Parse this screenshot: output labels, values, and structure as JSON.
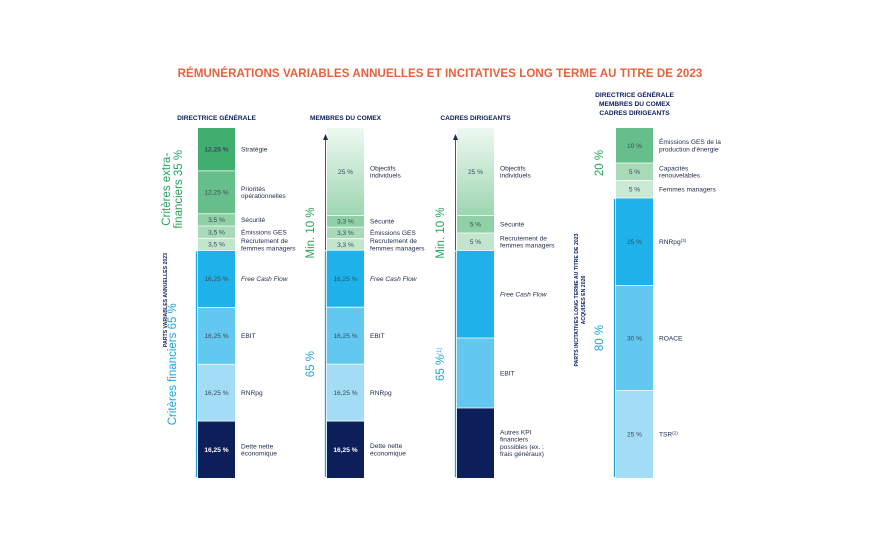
{
  "title": "RÉMUNÉRATIONS VARIABLES ANNUELLES ET INCITATIVES LONG TERME AU TITRE DE 2023",
  "colors": {
    "green_dark": "#3fae6e",
    "green_mid": "#66bf8a",
    "green_light": "#8fd0a6",
    "green_pale": "#b7e1c4",
    "green_faint": "#d9efe0",
    "blue_mid": "#1fb2ea",
    "blue_light": "#62c8ef",
    "blue_pale": "#a3dcf5",
    "navy": "#0c1f5b",
    "title_orange": "#e8603c"
  },
  "left_axis_label": "PARTS VARIABLES ANNUELLES 2023",
  "right_axis_label_1": "PARTS INCITATIVES LONG TERME AU TITRE DE 2023",
  "right_axis_label_2": "ACQUISES EN 2026",
  "chart_data": [
    {
      "type": "stacked-bar",
      "header": [
        "DIRECTRICE GÉNÉRALE"
      ],
      "segments": [
        {
          "value": 12.25,
          "label": "12,25 %",
          "name": "Stratégie",
          "color": "#3fae6e",
          "bold": true
        },
        {
          "value": 12.25,
          "label": "12,25 %",
          "name": "Priorités opérationnelles",
          "color": "#66bf8a"
        },
        {
          "value": 3.5,
          "label": "3,5 %",
          "name": "Sécurité",
          "color": "#8fd0a6"
        },
        {
          "value": 3.5,
          "label": "3,5 %",
          "name": "Émissions GES",
          "color": "#a8dab7"
        },
        {
          "value": 3.5,
          "label": "3,5 %",
          "name": "Recrutement de femmes managers",
          "color": "#c2e6cd"
        },
        {
          "value": 16.25,
          "label": "16,25 %",
          "name": "Free Cash Flow",
          "color": "#1fb2ea",
          "italic": true
        },
        {
          "value": 16.25,
          "label": "16,25 %",
          "name": "EBIT",
          "color": "#62c8ef"
        },
        {
          "value": 16.25,
          "label": "16,25 %",
          "name": "RNRpg",
          "color": "#a3dcf5"
        },
        {
          "value": 16.25,
          "label": "16,25 %",
          "name": "Dette nette économique",
          "color": "#0c1f5b",
          "bold": true
        }
      ],
      "groups": [
        {
          "text": "Critères extra-financiers 35 %",
          "color": "green",
          "from": 0,
          "to": 5
        },
        {
          "text": "Critères financiers 65 %",
          "color": "blue",
          "from": 5,
          "to": 9
        }
      ]
    },
    {
      "type": "stacked-bar",
      "header": [
        "MEMBRES DU COMEX"
      ],
      "segments": [
        {
          "value": 25,
          "label": "25 %",
          "name": "Objectifs individuels",
          "color": "#c9e9d4",
          "gradient": true
        },
        {
          "value": 3.3,
          "label": "3,3 %",
          "name": "Sécurité",
          "color": "#8fd0a6"
        },
        {
          "value": 3.3,
          "label": "3,3 %",
          "name": "Émissions GES",
          "color": "#a8dab7"
        },
        {
          "value": 3.3,
          "label": "3,3 %",
          "name": "Recrutement de femmes managers",
          "color": "#c2e6cd"
        },
        {
          "value": 16.25,
          "label": "16,25 %",
          "name": "Free Cash Flow",
          "color": "#1fb2ea",
          "italic": true
        },
        {
          "value": 16.25,
          "label": "16,25 %",
          "name": "EBIT",
          "color": "#62c8ef"
        },
        {
          "value": 16.25,
          "label": "16,25 %",
          "name": "RNRpg",
          "color": "#a3dcf5"
        },
        {
          "value": 16.25,
          "label": "16,25 %",
          "name": "Dette nette économique",
          "color": "#0c1f5b",
          "bold": true
        }
      ],
      "groups": [
        {
          "text": "Min. 10 %",
          "color": "green",
          "from": 1,
          "to": 4,
          "arrow": true
        },
        {
          "text": "65 %",
          "color": "blue",
          "from": 4,
          "to": 8
        }
      ]
    },
    {
      "type": "stacked-bar",
      "header": [
        "CADRES DIRIGEANTS"
      ],
      "segments": [
        {
          "value": 25,
          "label": "25 %",
          "name": "Objectifs individuels",
          "color": "#c9e9d4",
          "gradient": true
        },
        {
          "value": 5,
          "label": "5 %",
          "name": "Sécurité",
          "color": "#8fd0a6"
        },
        {
          "value": 5,
          "label": "5 %",
          "name": "Recrutement de femmes managers",
          "color": "#c2e6cd"
        },
        {
          "value": 25,
          "label": "",
          "name": "Free Cash Flow",
          "color": "#1fb2ea",
          "italic": true
        },
        {
          "value": 20,
          "label": "",
          "name": "EBIT",
          "color": "#62c8ef"
        },
        {
          "value": 20,
          "label": "",
          "name": "Autres KPI financiers possibles (ex. : frais généraux)",
          "color": "#0c1f5b"
        }
      ],
      "groups": [
        {
          "text": "Min. 10 %",
          "color": "green",
          "from": 1,
          "to": 3,
          "arrow": true
        },
        {
          "text": "65 %",
          "sup": "(1)",
          "color": "blue",
          "from": 3,
          "to": 6
        }
      ]
    },
    {
      "type": "stacked-bar",
      "header": [
        "DIRECTRICE GÉNÉRALE",
        "MEMBRES DU COMEX",
        "CADRES DIRIGEANTS"
      ],
      "segments": [
        {
          "value": 10,
          "label": "10 %",
          "name": "Émissions GES de la production d'énergie",
          "color": "#66bf8a"
        },
        {
          "value": 5,
          "label": "5 %",
          "name": "Capacités renouvelables",
          "color": "#a8dab7"
        },
        {
          "value": 5,
          "label": "5 %",
          "name": "Femmes managers",
          "color": "#c9e9d4"
        },
        {
          "value": 25,
          "label": "25 %",
          "name": "RNRpg",
          "sup": "(3)",
          "color": "#1fb2ea"
        },
        {
          "value": 30,
          "label": "30 %",
          "name": "ROACE",
          "color": "#62c8ef"
        },
        {
          "value": 25,
          "label": "25 %",
          "name": "TSR",
          "sup": "(2)",
          "color": "#a3dcf5"
        }
      ],
      "groups": [
        {
          "text": "20 %",
          "color": "green",
          "from": 0,
          "to": 3
        },
        {
          "text": "80 %",
          "color": "blue",
          "from": 3,
          "to": 6
        }
      ]
    }
  ]
}
